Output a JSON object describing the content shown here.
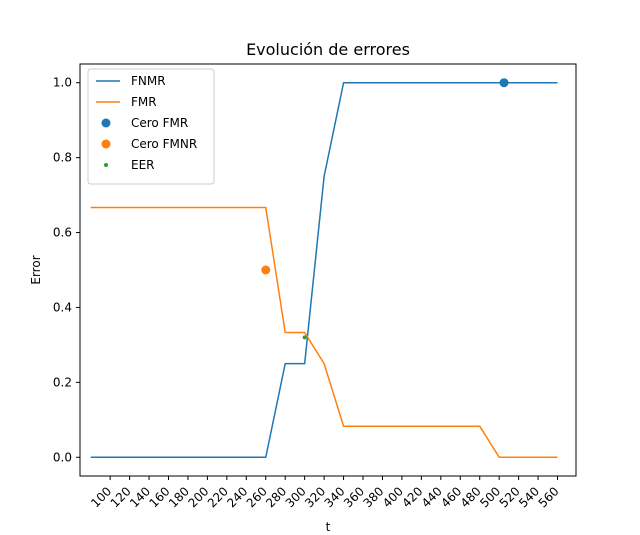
{
  "chart_data": {
    "type": "line",
    "title": "Evolución de errores",
    "xlabel": "t",
    "ylabel": "Error",
    "xlim": [
      69,
      579
    ],
    "ylim": [
      -0.05,
      1.05
    ],
    "x": [
      80,
      100,
      120,
      140,
      160,
      180,
      200,
      220,
      240,
      260,
      280,
      300,
      320,
      340,
      360,
      380,
      400,
      420,
      440,
      460,
      480,
      500,
      520,
      540,
      560
    ],
    "x_ticks": [
      100,
      120,
      140,
      160,
      180,
      200,
      220,
      240,
      260,
      280,
      300,
      320,
      340,
      360,
      380,
      400,
      420,
      440,
      460,
      480,
      500,
      520,
      540,
      560
    ],
    "y_ticks": [
      0.0,
      0.2,
      0.4,
      0.6,
      0.8,
      1.0
    ],
    "y_tick_labels": [
      "0.0",
      "0.2",
      "0.4",
      "0.6",
      "0.8",
      "1.0"
    ],
    "x_tick_rotation": 45,
    "grid": false,
    "legend_position": "top-left",
    "series": [
      {
        "name": "FNMR",
        "kind": "line",
        "color": "#1f77b4",
        "values": [
          0,
          0,
          0,
          0,
          0,
          0,
          0,
          0,
          0,
          0,
          0.25,
          0.25,
          0.75,
          1,
          1,
          1,
          1,
          1,
          1,
          1,
          1,
          1,
          1,
          1,
          1
        ]
      },
      {
        "name": "FMR",
        "kind": "line",
        "color": "#ff7f0e",
        "values": [
          0.667,
          0.667,
          0.667,
          0.667,
          0.667,
          0.667,
          0.667,
          0.667,
          0.667,
          0.667,
          0.333,
          0.333,
          0.25,
          0.083,
          0.083,
          0.083,
          0.083,
          0.083,
          0.083,
          0.083,
          0.083,
          0,
          0,
          0,
          0
        ]
      },
      {
        "name": "Cero FMR",
        "kind": "scatter",
        "color": "#1f77b4",
        "points": [
          {
            "x": 505,
            "y": 1.0
          }
        ]
      },
      {
        "name": "Cero FMNR",
        "kind": "scatter",
        "color": "#ff7f0e",
        "points": [
          {
            "x": 260,
            "y": 0.5
          }
        ]
      },
      {
        "name": "EER",
        "kind": "scatter",
        "color": "#2ca02c",
        "marker": "small",
        "points": [
          {
            "x": 300,
            "y": 0.32
          }
        ]
      }
    ]
  }
}
